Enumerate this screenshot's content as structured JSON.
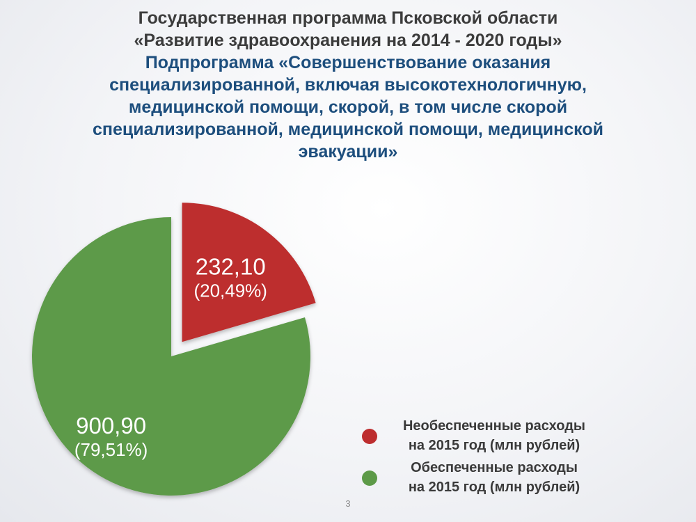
{
  "title": {
    "line1": "Государственная программа Псковской области",
    "line2": "«Развитие здравоохранения на 2014 - 2020 годы»",
    "line3": "Подпрограмма «Совершенствование оказания",
    "line4": "специализированной, включая высокотехнологичную,",
    "line5": "медицинской помощи, скорой, в том числе скорой",
    "line6": "специализированной, медицинской помощи, медицинской",
    "line7": "эвакуации»"
  },
  "chart_data": {
    "type": "pie",
    "title": "",
    "slices": [
      {
        "value": 232.1,
        "value_label": "232,10",
        "percent": 20.49,
        "percent_label": "(20,49%)",
        "color": "#bd2d2f",
        "exploded": true,
        "legend": [
          "Необеспеченные расходы",
          "на 2015 год  (млн рублей)"
        ]
      },
      {
        "value": 900.9,
        "value_label": "900,90",
        "percent": 79.51,
        "percent_label": "(79,51%)",
        "color": "#5d9a48",
        "exploded": false,
        "legend": [
          "Обеспеченные расходы",
          "на 2015 год (млн рублей)"
        ]
      }
    ],
    "legend_position": "bottom-right"
  },
  "page_number": "3"
}
